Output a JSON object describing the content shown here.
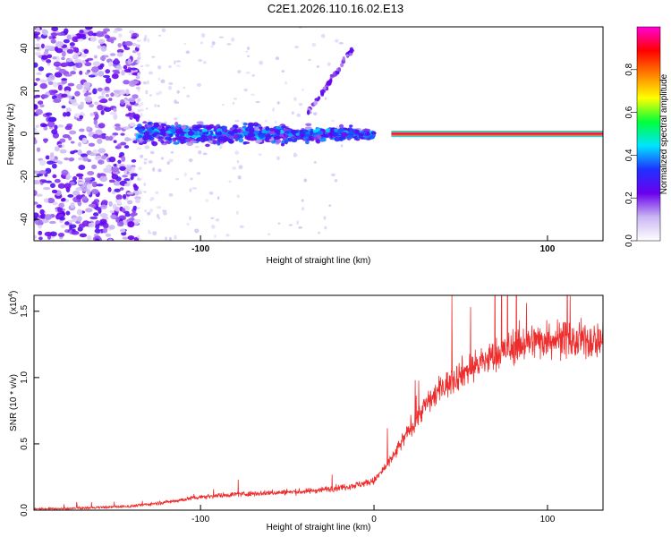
{
  "title": "C2E1.2026.110.16.02.E13",
  "colors": {
    "snr_line": "#ee2c2c",
    "background": "#ffffff",
    "axis": "#000000"
  },
  "chart_data": [
    {
      "type": "heatmap",
      "name": "spectrogram",
      "xlabel": "Height of straight line (km)",
      "ylabel": "Frequency (Hz)",
      "xlim": [
        -196,
        132
      ],
      "ylim": [
        -50,
        50
      ],
      "xticks": [
        -100,
        100
      ],
      "yticks": [
        -40,
        -20,
        0,
        20,
        40
      ],
      "colorbar": {
        "label": "Normalized spectral amplitude",
        "range": [
          0,
          1
        ],
        "ticks": [
          "0.0",
          "0.2",
          "0.4",
          "0.6",
          "0.8"
        ],
        "tick_values": [
          0,
          0.2,
          0.4,
          0.6,
          0.8
        ],
        "colors": [
          "#ffffff",
          "#c9b6f2",
          "#6a00ee",
          "#2030ff",
          "#00e5ff",
          "#00ff3a",
          "#ffff00",
          "#ff8000",
          "#ff0000",
          "#ff00d8"
        ]
      },
      "features": [
        {
          "description": "broadband noise",
          "x_range": [
            -196,
            -136
          ],
          "freq_range": [
            -50,
            50
          ],
          "level": 0.15
        },
        {
          "description": "narrow band signal",
          "x_range": [
            -136,
            0
          ],
          "freq_range": [
            -8,
            8
          ],
          "level": 0.3
        },
        {
          "description": "rising harmonic",
          "points": [
            [
              -36,
              12
            ],
            [
              -26,
              24
            ],
            [
              -20,
              34
            ],
            [
              -14,
              40
            ]
          ],
          "level": 0.2
        },
        {
          "description": "carrier line",
          "x_range": [
            10,
            132
          ],
          "freq": 0,
          "level": 1.0
        }
      ]
    },
    {
      "type": "line",
      "name": "snr",
      "xlabel": "Height of straight line (km)",
      "ylabel": "SNR (10 * v/v)",
      "y_multiplier": "(x10⁴)",
      "y_multiplier_base": "(x10",
      "y_multiplier_exp": "4",
      "y_multiplier_close": ")",
      "xlim": [
        -196,
        132
      ],
      "ylim": [
        0,
        1.62
      ],
      "xticks": [
        -100,
        0,
        100
      ],
      "yticks": [
        "0.0",
        "0.5",
        "1.0",
        "1.5"
      ],
      "ytick_values": [
        0,
        0.5,
        1.0,
        1.5
      ],
      "series": [
        {
          "name": "SNR",
          "x": [
            -196,
            -180,
            -160,
            -140,
            -120,
            -100,
            -80,
            -60,
            -40,
            -20,
            -10,
            0,
            10,
            20,
            30,
            40,
            50,
            60,
            70,
            80,
            90,
            100,
            110,
            115,
            120,
            132
          ],
          "values": [
            0.01,
            0.01,
            0.02,
            0.03,
            0.06,
            0.1,
            0.12,
            0.13,
            0.14,
            0.17,
            0.19,
            0.22,
            0.38,
            0.6,
            0.8,
            0.93,
            1.03,
            1.1,
            1.17,
            1.23,
            1.27,
            1.29,
            1.3,
            1.26,
            1.28,
            1.28
          ]
        }
      ]
    }
  ]
}
